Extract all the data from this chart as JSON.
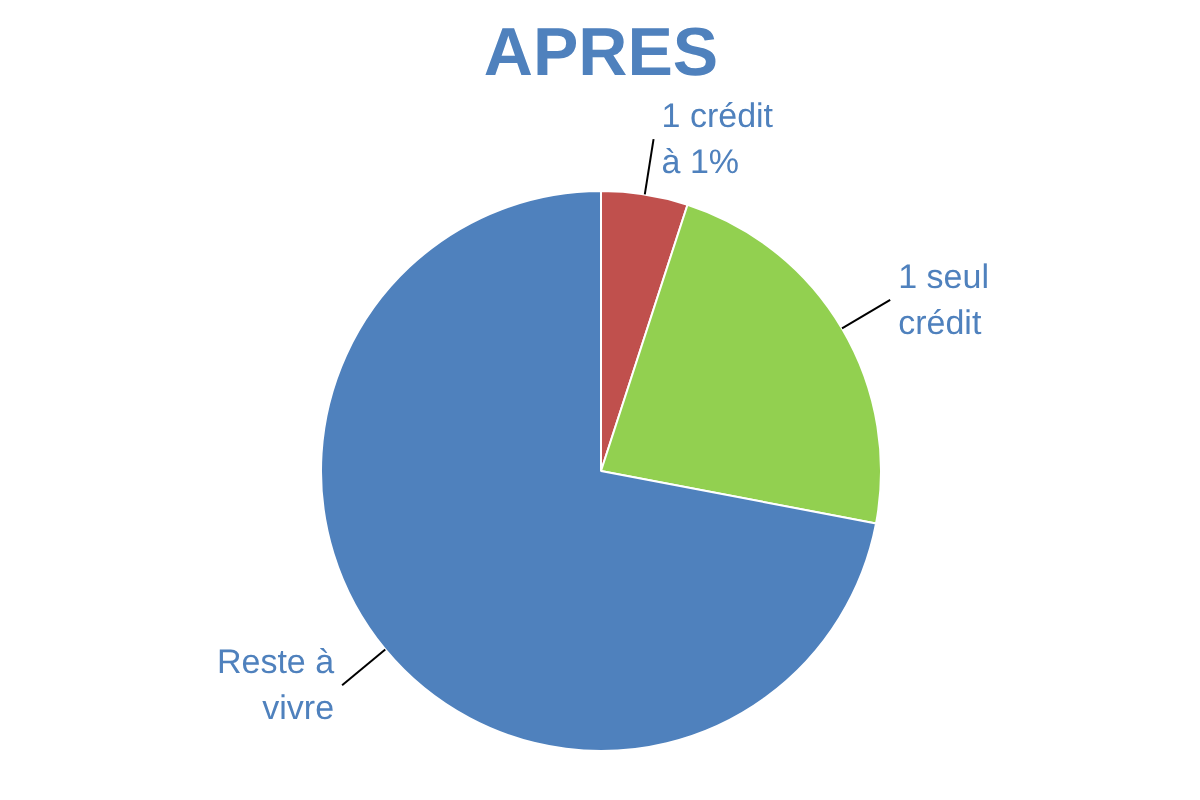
{
  "chart_data": {
    "type": "pie",
    "title": "APRES",
    "categories": [
      "1 crédit à 1%",
      "1 seul crédit",
      "Reste à vivre"
    ],
    "values": [
      5,
      23,
      72
    ],
    "colors": [
      "#c0504d",
      "#92d050",
      "#4f81bd"
    ]
  }
}
